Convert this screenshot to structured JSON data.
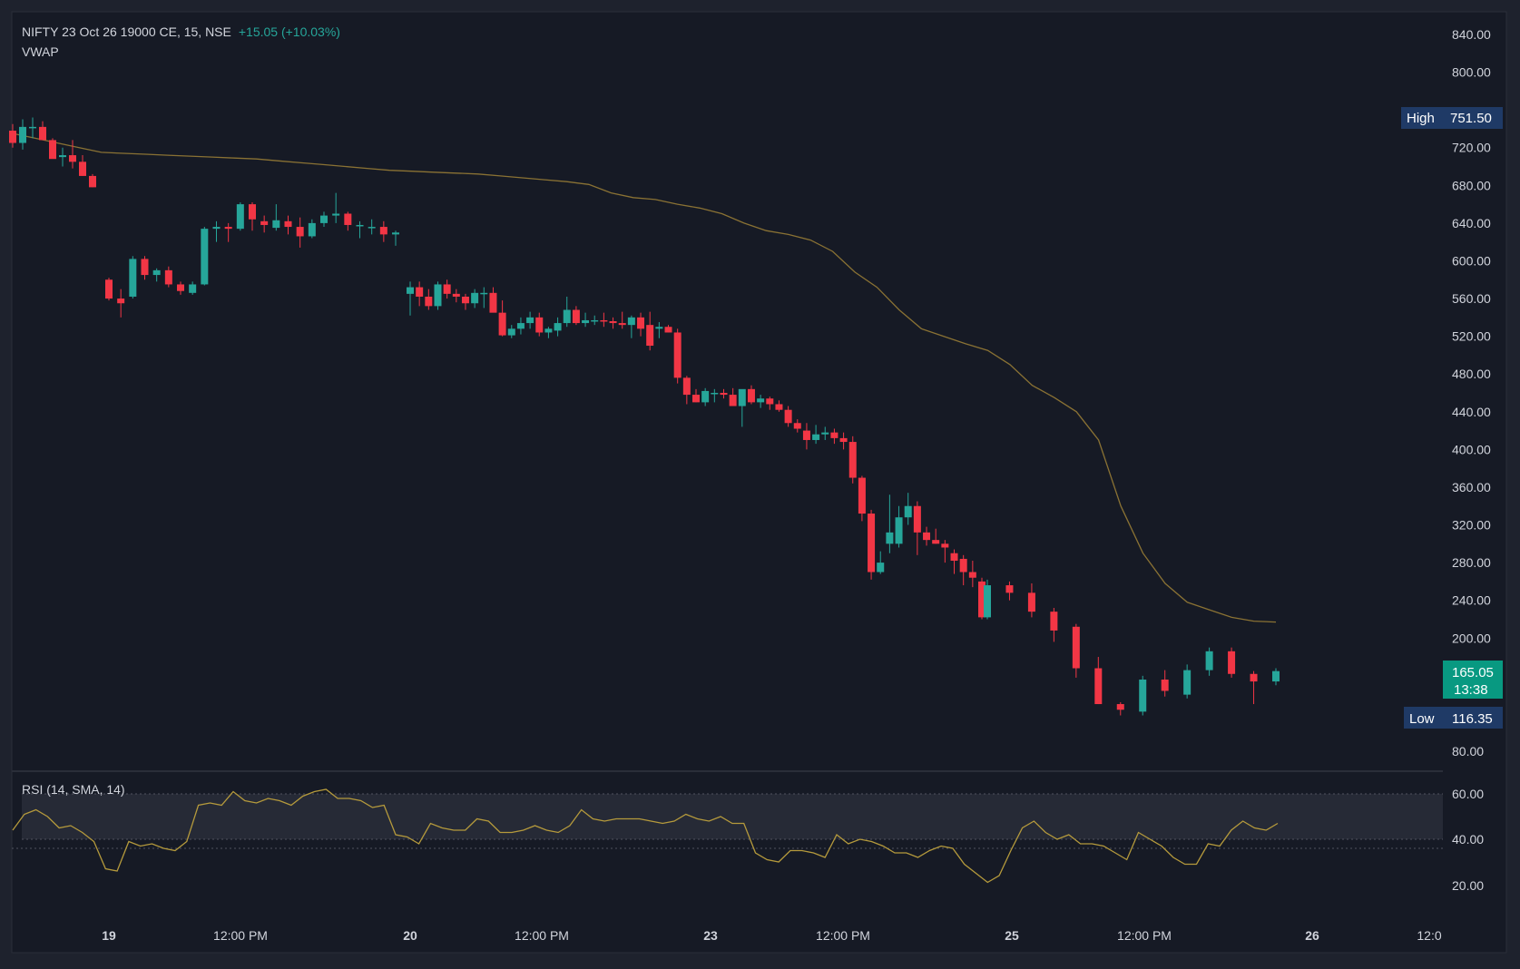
{
  "legend": {
    "symbol_line": "NIFTY 23 Oct 26 19000 CE, 15, NSE",
    "change": "+15.05 (+10.03%)",
    "indicator": "VWAP"
  },
  "rsi_legend": "RSI (14, SMA, 14)",
  "price_axis": [
    "840.00",
    "800.00",
    "720.00",
    "680.00",
    "640.00",
    "600.00",
    "560.00",
    "520.00",
    "480.00",
    "440.00",
    "400.00",
    "360.00",
    "320.00",
    "280.00",
    "240.00",
    "200.00",
    "80.00"
  ],
  "rsi_axis": [
    "60.00",
    "40.00",
    "20.00"
  ],
  "time_axis": [
    "19",
    "12:00 PM",
    "20",
    "12:00 PM",
    "23",
    "12:00 PM",
    "25",
    "12:00 PM",
    "26",
    "12:0"
  ],
  "markers": {
    "high_label": "High",
    "high_value": "751.50",
    "low_label": "Low",
    "low_value": "116.35",
    "last_price": "165.05",
    "countdown": "13:38"
  },
  "colors": {
    "up": "#26a69a",
    "down": "#f23645",
    "vwap": "#8a7234",
    "rsi": "#b59a3c",
    "background": "#1e222d",
    "axis_text": "#d1d4dc",
    "marker_bg": "#1f3a66",
    "last_bg": "#089981"
  },
  "chart_data": [
    {
      "type": "candlestick",
      "title": "NIFTY 23 Oct 26 19000 CE, 15, NSE",
      "ylim": [
        55,
        865
      ],
      "grid": false,
      "candles": [
        [
          738,
          745,
          720,
          725
        ],
        [
          725,
          750,
          718,
          742
        ],
        [
          742,
          752,
          730,
          742
        ],
        [
          742,
          748,
          730,
          728
        ],
        [
          728,
          730,
          710,
          708
        ],
        [
          710,
          720,
          700,
          712
        ],
        [
          712,
          728,
          698,
          705
        ],
        [
          705,
          712,
          690,
          690
        ],
        [
          690,
          692,
          678,
          678
        ],
        [
          580,
          582,
          558,
          560
        ],
        [
          560,
          570,
          540,
          555
        ],
        [
          562,
          605,
          560,
          602
        ],
        [
          602,
          605,
          580,
          585
        ],
        [
          585,
          592,
          578,
          590
        ],
        [
          590,
          594,
          572,
          575
        ],
        [
          575,
          578,
          564,
          568
        ],
        [
          566,
          578,
          564,
          575
        ],
        [
          575,
          636,
          574,
          634
        ],
        [
          634,
          642,
          620,
          636
        ],
        [
          636,
          640,
          620,
          634
        ],
        [
          634,
          662,
          632,
          660
        ],
        [
          660,
          662,
          632,
          644
        ],
        [
          642,
          648,
          630,
          638
        ],
        [
          635,
          660,
          632,
          643
        ],
        [
          642,
          648,
          628,
          636
        ],
        [
          636,
          646,
          614,
          626
        ],
        [
          626,
          644,
          624,
          640
        ],
        [
          640,
          652,
          636,
          648
        ],
        [
          648,
          672,
          640,
          650
        ],
        [
          650,
          652,
          632,
          638
        ],
        [
          638,
          642,
          624,
          638
        ],
        [
          636,
          644,
          628,
          636
        ],
        [
          636,
          642,
          620,
          628
        ],
        [
          628,
          632,
          616,
          630
        ],
        [
          565,
          578,
          542,
          572
        ],
        [
          572,
          578,
          552,
          562
        ],
        [
          562,
          570,
          548,
          552
        ],
        [
          552,
          578,
          548,
          575
        ],
        [
          575,
          580,
          560,
          565
        ],
        [
          565,
          570,
          556,
          562
        ],
        [
          562,
          565,
          548,
          555
        ],
        [
          555,
          570,
          550,
          566
        ],
        [
          566,
          572,
          550,
          566
        ],
        [
          566,
          572,
          550,
          545
        ],
        [
          545,
          558,
          520,
          521
        ],
        [
          521,
          532,
          518,
          528
        ],
        [
          528,
          540,
          522,
          534
        ],
        [
          534,
          546,
          528,
          540
        ],
        [
          540,
          545,
          520,
          524
        ],
        [
          524,
          530,
          518,
          528
        ],
        [
          526,
          540,
          520,
          534
        ],
        [
          534,
          562,
          530,
          548
        ],
        [
          548,
          552,
          532,
          534
        ],
        [
          534,
          545,
          530,
          537
        ],
        [
          537,
          542,
          532,
          537
        ],
        [
          537,
          545,
          530,
          536
        ],
        [
          536,
          540,
          528,
          534
        ],
        [
          534,
          546,
          528,
          532
        ],
        [
          532,
          542,
          518,
          540
        ],
        [
          540,
          545,
          520,
          528
        ],
        [
          532,
          546,
          505,
          510
        ],
        [
          528,
          535,
          518,
          530
        ],
        [
          530,
          532,
          524,
          524
        ],
        [
          524,
          528,
          470,
          476
        ],
        [
          476,
          478,
          448,
          458
        ],
        [
          458,
          464,
          450,
          450
        ],
        [
          450,
          465,
          446,
          462
        ],
        [
          460,
          464,
          450,
          460
        ],
        [
          460,
          464,
          454,
          458
        ],
        [
          458,
          465,
          452,
          446
        ],
        [
          446,
          462,
          424,
          464
        ],
        [
          464,
          468,
          448,
          450
        ],
        [
          450,
          458,
          444,
          454
        ],
        [
          454,
          456,
          442,
          448
        ],
        [
          448,
          452,
          440,
          442
        ],
        [
          442,
          446,
          424,
          428
        ],
        [
          428,
          432,
          418,
          422
        ],
        [
          420,
          428,
          400,
          410
        ],
        [
          410,
          426,
          406,
          416
        ],
        [
          416,
          424,
          410,
          418
        ],
        [
          418,
          422,
          406,
          412
        ],
        [
          412,
          418,
          400,
          408
        ],
        [
          408,
          414,
          364,
          370
        ],
        [
          370,
          372,
          324,
          332
        ],
        [
          332,
          336,
          262,
          270
        ],
        [
          270,
          292,
          268,
          280
        ],
        [
          300,
          352,
          290,
          312
        ],
        [
          300,
          340,
          296,
          328
        ],
        [
          328,
          354,
          320,
          340
        ],
        [
          340,
          345,
          288,
          312
        ],
        [
          312,
          318,
          298,
          304
        ],
        [
          304,
          316,
          300,
          300
        ],
        [
          300,
          304,
          280,
          296
        ],
        [
          290,
          294,
          268,
          282
        ],
        [
          284,
          288,
          256,
          270
        ],
        [
          270,
          282,
          254,
          264
        ],
        [
          260,
          264,
          220,
          222
        ],
        [
          222,
          262,
          220,
          256
        ],
        [
          256,
          260,
          240,
          248
        ],
        [
          248,
          258,
          222,
          228
        ],
        [
          228,
          232,
          196,
          208
        ],
        [
          212,
          215,
          158,
          168
        ],
        [
          168,
          180,
          130,
          130
        ],
        [
          130,
          132,
          118,
          124
        ],
        [
          122,
          160,
          118,
          156
        ],
        [
          156,
          166,
          138,
          144
        ],
        [
          140,
          172,
          136,
          166
        ],
        [
          166,
          190,
          160,
          186
        ],
        [
          186,
          190,
          158,
          162
        ],
        [
          162,
          165,
          130,
          154
        ],
        [
          154,
          168,
          150,
          165
        ]
      ],
      "vwap": [
        735,
        730,
        725,
        720,
        715,
        714,
        713,
        712,
        711,
        710,
        709,
        708,
        706,
        704,
        702,
        700,
        698,
        696,
        695,
        694,
        693,
        692,
        690,
        688,
        686,
        684,
        681,
        672,
        667,
        665,
        660,
        656,
        650,
        640,
        632,
        628,
        622,
        610,
        588,
        572,
        548,
        528,
        520,
        512,
        505,
        490,
        468,
        455,
        440,
        410,
        340,
        290,
        258,
        238,
        230,
        222,
        218,
        217
      ],
      "rsi": [
        44,
        51,
        53,
        50,
        45,
        46,
        43,
        39,
        27,
        26,
        39,
        37,
        38,
        36,
        35,
        39,
        55,
        56,
        55,
        61,
        57,
        56,
        58,
        57,
        55,
        59,
        61,
        62,
        58,
        58,
        57,
        54,
        55,
        42,
        41,
        38,
        47,
        45,
        44,
        44,
        49,
        48,
        43,
        43,
        44,
        46,
        44,
        43,
        46,
        53,
        49,
        48,
        49,
        49,
        49,
        48,
        47,
        48,
        51,
        49,
        48,
        50,
        47,
        47,
        34,
        31,
        30,
        35,
        35,
        34,
        32,
        42,
        38,
        40,
        39,
        37,
        34,
        34,
        32,
        35,
        37,
        36,
        29,
        25,
        21,
        24,
        35,
        45,
        48,
        43,
        40,
        42,
        38,
        38,
        37,
        34,
        31,
        43,
        40,
        37,
        32,
        29,
        29,
        38,
        37,
        44,
        48,
        45,
        44,
        47
      ],
      "rsi_ylim": [
        5,
        65
      ]
    }
  ]
}
